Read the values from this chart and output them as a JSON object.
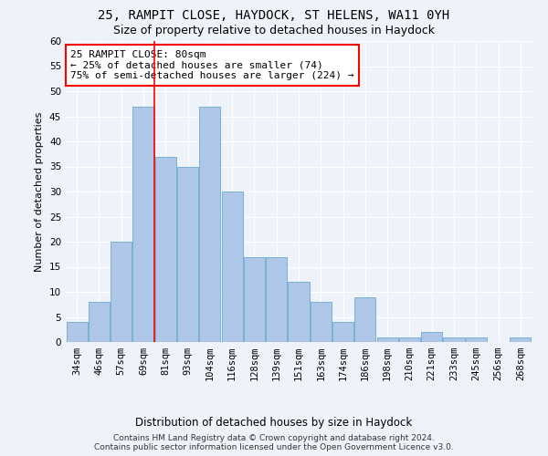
{
  "title1": "25, RAMPIT CLOSE, HAYDOCK, ST HELENS, WA11 0YH",
  "title2": "Size of property relative to detached houses in Haydock",
  "xlabel": "Distribution of detached houses by size in Haydock",
  "ylabel": "Number of detached properties",
  "bar_values": [
    4,
    8,
    20,
    47,
    37,
    35,
    47,
    30,
    17,
    17,
    12,
    8,
    4,
    9,
    1,
    1,
    2,
    1,
    1,
    0,
    1
  ],
  "bar_labels": [
    "34sqm",
    "46sqm",
    "57sqm",
    "69sqm",
    "81sqm",
    "93sqm",
    "104sqm",
    "116sqm",
    "128sqm",
    "139sqm",
    "151sqm",
    "163sqm",
    "174sqm",
    "186sqm",
    "198sqm",
    "210sqm",
    "221sqm",
    "233sqm",
    "245sqm",
    "256sqm",
    "268sqm"
  ],
  "bar_color": "#aec6e8",
  "bar_edgecolor": "#7aafd4",
  "vline_index": 4,
  "vline_color": "red",
  "annotation_text": "25 RAMPIT CLOSE: 80sqm\n← 25% of detached houses are smaller (74)\n75% of semi-detached houses are larger (224) →",
  "annotation_box_color": "white",
  "annotation_box_edgecolor": "red",
  "ylim": [
    0,
    60
  ],
  "yticks": [
    0,
    5,
    10,
    15,
    20,
    25,
    30,
    35,
    40,
    45,
    50,
    55,
    60
  ],
  "footer_text": "Contains HM Land Registry data © Crown copyright and database right 2024.\nContains public sector information licensed under the Open Government Licence v3.0.",
  "background_color": "#eef2f9",
  "grid_color": "white",
  "title1_fontsize": 10,
  "title2_fontsize": 9,
  "xlabel_fontsize": 8.5,
  "ylabel_fontsize": 8,
  "tick_fontsize": 7.5,
  "annotation_fontsize": 8,
  "footer_fontsize": 6.5
}
